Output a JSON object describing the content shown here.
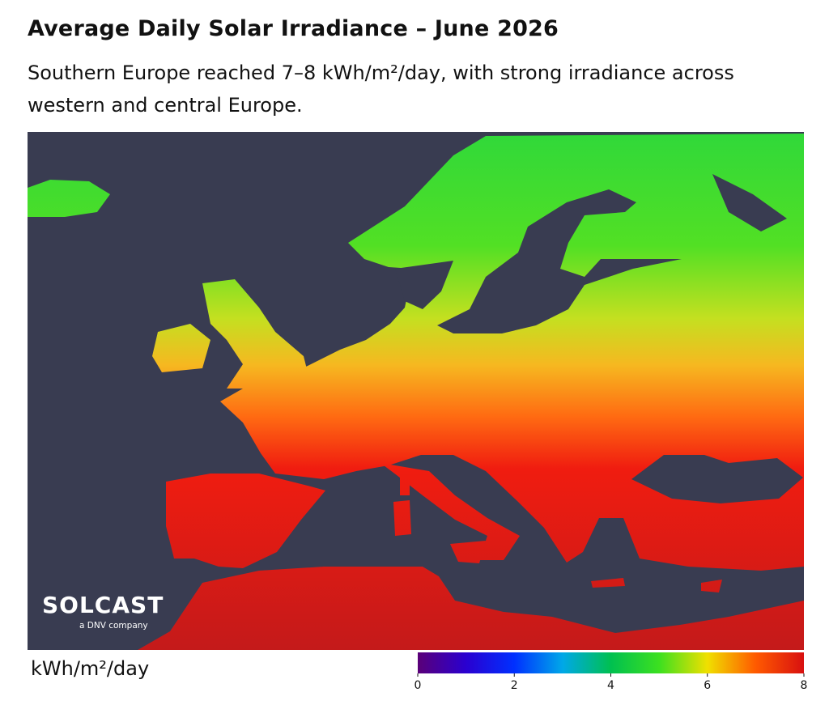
{
  "header": {
    "title": "Average Daily Solar Irradiance – June 2026",
    "subtitle": "Southern Europe reached 7–8 kWh/m²/day, with strong irradiance across western and central Europe."
  },
  "logo": {
    "name": "SOLCAST",
    "tagline": "a DNV company"
  },
  "colorbar": {
    "label": "kWh/m²/day",
    "range": [
      0,
      8
    ],
    "ticks": [
      0,
      2,
      4,
      6,
      8
    ],
    "colors": [
      "#5a0078",
      "#2a00d0",
      "#0030ff",
      "#00a8e8",
      "#00c050",
      "#3ce020",
      "#f0e000",
      "#ff5a00",
      "#d81010"
    ]
  }
}
